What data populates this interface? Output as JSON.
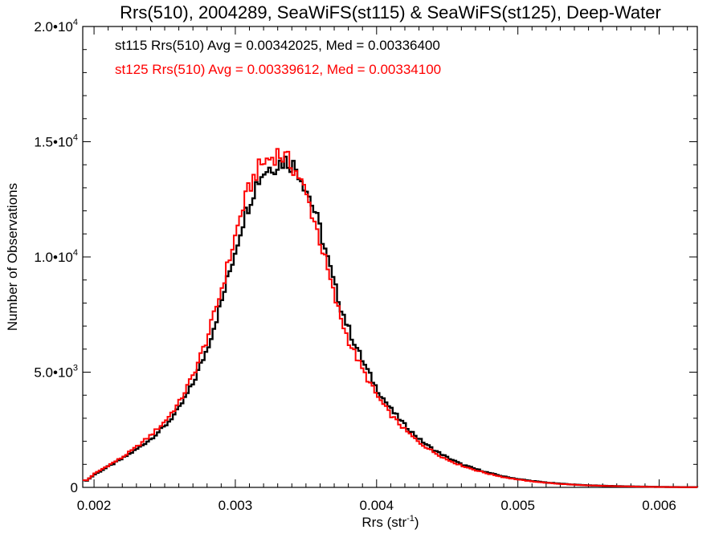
{
  "chart_data": {
    "type": "line",
    "subtype": "step-histogram",
    "title": "Rrs(510), 2004289, SeaWiFS(st115) & SeaWiFS(st125), Deep-Water",
    "xlabel": "Rrs (str",
    "xlabel_sup": "-1",
    "xlabel_tail": ")",
    "ylabel": "Number of Observations",
    "xlim": [
      0.00192,
      0.00627
    ],
    "ylim": [
      0,
      20000
    ],
    "x_ticks": [
      0.002,
      0.003,
      0.004,
      0.005,
      0.006
    ],
    "x_tick_labels": [
      "0.002",
      "0.003",
      "0.004",
      "0.005",
      "0.006"
    ],
    "y_ticks": [
      0,
      5000,
      10000,
      15000,
      20000
    ],
    "y_tick_labels": [
      {
        "base": "0",
        "exp": ""
      },
      {
        "base": "5.0•10",
        "exp": "3"
      },
      {
        "base": "1.0•10",
        "exp": "4"
      },
      {
        "base": "1.5•10",
        "exp": "4"
      },
      {
        "base": "2.0•10",
        "exp": "4"
      }
    ],
    "grid": false,
    "legend_position": "top-left",
    "annotations": [
      {
        "text": "st115 Rrs(510) Avg = 0.00342025, Med = 0.00336400",
        "color": "#000000"
      },
      {
        "text": "st125 Rrs(510) Avg = 0.00339612, Med = 0.00334100",
        "color": "#ff0000"
      }
    ],
    "series": [
      {
        "color": "#000000",
        "x": [
          0.00195,
          0.002,
          0.0021,
          0.0022,
          0.0023,
          0.0024,
          0.0025,
          0.0026,
          0.0027,
          0.0028,
          0.0029,
          0.003,
          0.00305,
          0.0031,
          0.00315,
          0.0032,
          0.00325,
          0.0033,
          0.00335,
          0.0034,
          0.00345,
          0.0035,
          0.00355,
          0.0036,
          0.00365,
          0.0037,
          0.00375,
          0.0038,
          0.0039,
          0.004,
          0.0041,
          0.0042,
          0.0043,
          0.0044,
          0.0045,
          0.0046,
          0.0047,
          0.0048,
          0.0049,
          0.005,
          0.0051,
          0.0052,
          0.0053,
          0.0054,
          0.0055,
          0.0056,
          0.0058,
          0.006,
          0.0062
        ],
        "values": [
          300,
          550,
          900,
          1250,
          1650,
          2100,
          2650,
          3400,
          4500,
          6000,
          8000,
          10300,
          11500,
          12400,
          13200,
          13700,
          13900,
          14050,
          14200,
          14050,
          13700,
          13000,
          12200,
          11200,
          10000,
          8800,
          7800,
          6900,
          5500,
          4300,
          3400,
          2700,
          2100,
          1650,
          1300,
          1000,
          800,
          620,
          470,
          360,
          280,
          210,
          160,
          120,
          90,
          70,
          40,
          20,
          10
        ]
      },
      {
        "color": "#ff0000",
        "x": [
          0.00195,
          0.002,
          0.0021,
          0.0022,
          0.0023,
          0.0024,
          0.0025,
          0.0026,
          0.0027,
          0.0028,
          0.0029,
          0.003,
          0.00305,
          0.0031,
          0.00315,
          0.0032,
          0.00325,
          0.0033,
          0.00335,
          0.0034,
          0.00345,
          0.0035,
          0.00355,
          0.0036,
          0.00365,
          0.0037,
          0.00375,
          0.0038,
          0.0039,
          0.004,
          0.0041,
          0.0042,
          0.0043,
          0.0044,
          0.0045,
          0.0046,
          0.0047,
          0.0048,
          0.0049,
          0.005,
          0.0051,
          0.0052,
          0.0053,
          0.0054,
          0.0055,
          0.0056,
          0.0058,
          0.006,
          0.0062
        ],
        "values": [
          310,
          580,
          950,
          1300,
          1750,
          2250,
          2850,
          3650,
          4850,
          6450,
          8550,
          10900,
          12100,
          13000,
          13700,
          14100,
          14300,
          14500,
          14300,
          14000,
          13500,
          12700,
          11800,
          10700,
          9500,
          8300,
          7300,
          6400,
          5100,
          4000,
          3150,
          2500,
          1950,
          1550,
          1200,
          950,
          750,
          580,
          440,
          340,
          260,
          200,
          150,
          115,
          85,
          65,
          38,
          18,
          8
        ]
      }
    ]
  }
}
